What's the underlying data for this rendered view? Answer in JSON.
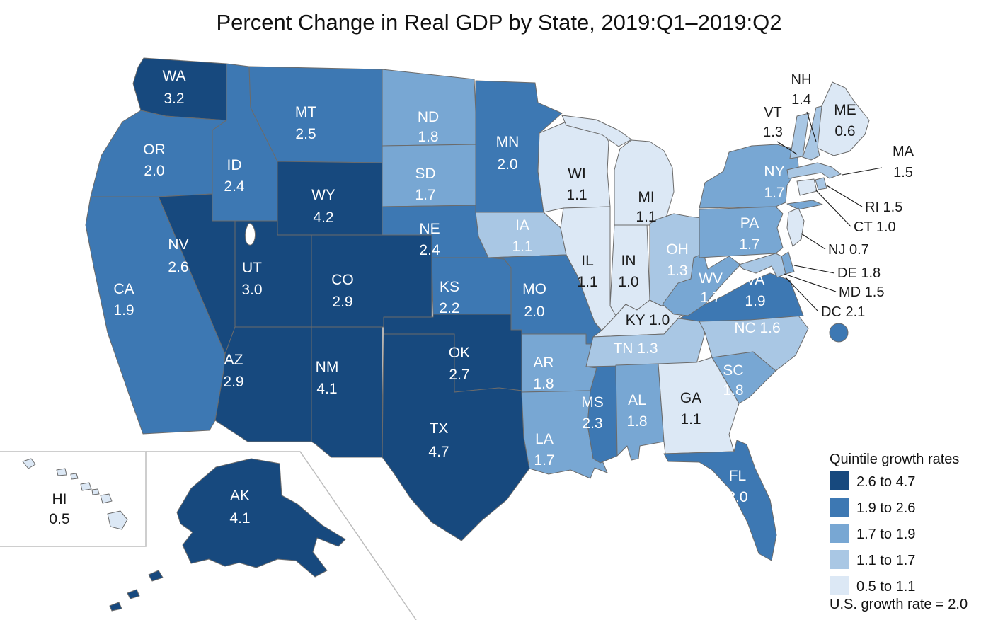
{
  "title": "Percent Change in Real GDP by State, 2019:Q1–2019:Q2",
  "legend": {
    "title": "Quintile growth rates",
    "items": [
      {
        "label": "2.6 to 4.7",
        "color": "#17497e"
      },
      {
        "label": "1.9 to 2.6",
        "color": "#3d78b3"
      },
      {
        "label": "1.7 to 1.9",
        "color": "#78a7d3"
      },
      {
        "label": "1.1 to 1.7",
        "color": "#a9c7e4"
      },
      {
        "label": "0.5 to 1.1",
        "color": "#dce8f5"
      }
    ],
    "footnote": "U.S. growth rate = 2.0"
  },
  "chart_data": {
    "type": "choropleth",
    "title": "Percent Change in Real GDP by State, 2019:Q1–2019:Q2",
    "unit": "percent change in real GDP",
    "us_growth_rate": 2.0,
    "quintile_ranges": [
      "2.6 to 4.7",
      "1.9 to 2.6",
      "1.7 to 1.9",
      "1.1 to 1.7",
      "0.5 to 1.1"
    ],
    "states": [
      {
        "abbr": "WA",
        "value": 3.2,
        "quintile": 1
      },
      {
        "abbr": "OR",
        "value": 2.0,
        "quintile": 2
      },
      {
        "abbr": "CA",
        "value": 1.9,
        "quintile": 2
      },
      {
        "abbr": "NV",
        "value": 2.6,
        "quintile": 1
      },
      {
        "abbr": "ID",
        "value": 2.4,
        "quintile": 2
      },
      {
        "abbr": "MT",
        "value": 2.5,
        "quintile": 2
      },
      {
        "abbr": "WY",
        "value": 4.2,
        "quintile": 1
      },
      {
        "abbr": "UT",
        "value": 3.0,
        "quintile": 1
      },
      {
        "abbr": "CO",
        "value": 2.9,
        "quintile": 1
      },
      {
        "abbr": "AZ",
        "value": 2.9,
        "quintile": 1
      },
      {
        "abbr": "NM",
        "value": 4.1,
        "quintile": 1
      },
      {
        "abbr": "ND",
        "value": 1.8,
        "quintile": 3
      },
      {
        "abbr": "SD",
        "value": 1.7,
        "quintile": 3
      },
      {
        "abbr": "NE",
        "value": 2.4,
        "quintile": 2
      },
      {
        "abbr": "KS",
        "value": 2.2,
        "quintile": 2
      },
      {
        "abbr": "OK",
        "value": 2.7,
        "quintile": 1
      },
      {
        "abbr": "TX",
        "value": 4.7,
        "quintile": 1
      },
      {
        "abbr": "MN",
        "value": 2.0,
        "quintile": 2
      },
      {
        "abbr": "IA",
        "value": 1.1,
        "quintile": 4
      },
      {
        "abbr": "MO",
        "value": 2.0,
        "quintile": 2
      },
      {
        "abbr": "AR",
        "value": 1.8,
        "quintile": 3
      },
      {
        "abbr": "LA",
        "value": 1.7,
        "quintile": 3
      },
      {
        "abbr": "MS",
        "value": 2.3,
        "quintile": 2
      },
      {
        "abbr": "WI",
        "value": 1.1,
        "quintile": 5
      },
      {
        "abbr": "IL",
        "value": 1.1,
        "quintile": 5
      },
      {
        "abbr": "IN",
        "value": 1.0,
        "quintile": 5
      },
      {
        "abbr": "MI",
        "value": 1.1,
        "quintile": 5
      },
      {
        "abbr": "OH",
        "value": 1.3,
        "quintile": 4
      },
      {
        "abbr": "KY",
        "value": 1.0,
        "quintile": 5
      },
      {
        "abbr": "TN",
        "value": 1.3,
        "quintile": 4
      },
      {
        "abbr": "AL",
        "value": 1.8,
        "quintile": 3
      },
      {
        "abbr": "GA",
        "value": 1.1,
        "quintile": 5
      },
      {
        "abbr": "FL",
        "value": 2.0,
        "quintile": 2
      },
      {
        "abbr": "SC",
        "value": 1.8,
        "quintile": 3
      },
      {
        "abbr": "NC",
        "value": 1.6,
        "quintile": 4
      },
      {
        "abbr": "VA",
        "value": 1.9,
        "quintile": 2
      },
      {
        "abbr": "WV",
        "value": 1.7,
        "quintile": 3
      },
      {
        "abbr": "PA",
        "value": 1.7,
        "quintile": 3
      },
      {
        "abbr": "NY",
        "value": 1.7,
        "quintile": 3
      },
      {
        "abbr": "ME",
        "value": 0.6,
        "quintile": 5
      },
      {
        "abbr": "NH",
        "value": 1.4,
        "quintile": 4
      },
      {
        "abbr": "VT",
        "value": 1.3,
        "quintile": 4
      },
      {
        "abbr": "MA",
        "value": 1.5,
        "quintile": 4
      },
      {
        "abbr": "RI",
        "value": 1.5,
        "quintile": 4
      },
      {
        "abbr": "CT",
        "value": 1.0,
        "quintile": 5
      },
      {
        "abbr": "NJ",
        "value": 0.7,
        "quintile": 5
      },
      {
        "abbr": "DE",
        "value": 1.8,
        "quintile": 3
      },
      {
        "abbr": "MD",
        "value": 1.5,
        "quintile": 4
      },
      {
        "abbr": "DC",
        "value": 2.1,
        "quintile": 2
      },
      {
        "abbr": "AK",
        "value": 4.1,
        "quintile": 1
      },
      {
        "abbr": "HI",
        "value": 0.5,
        "quintile": 5
      }
    ]
  }
}
